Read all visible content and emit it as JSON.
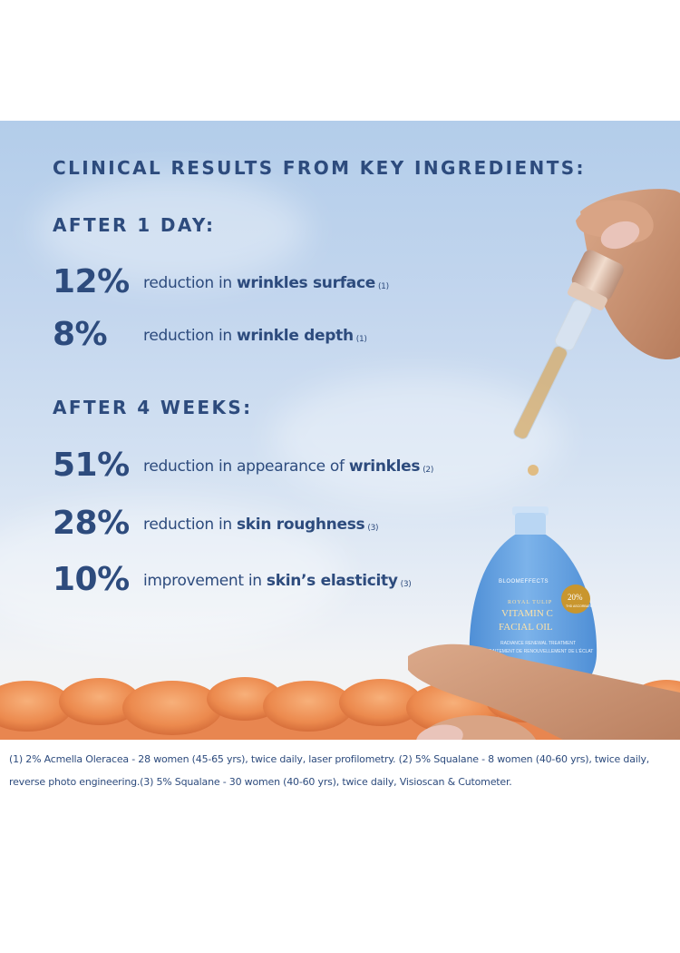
{
  "title": "CLINICAL RESULTS FROM KEY INGREDIENTS:",
  "sections": [
    {
      "heading": "AFTER 1 DAY:",
      "stats": [
        {
          "value": "12%",
          "text": "reduction in ",
          "bold": "wrinkles surface",
          "note": "(1)"
        },
        {
          "value": "8%",
          "text": "reduction in ",
          "bold": "wrinkle depth",
          "note": "(1)"
        }
      ]
    },
    {
      "heading": "AFTER 4 WEEKS:",
      "stats": [
        {
          "value": "51%",
          "text": "reduction in appearance of ",
          "bold": "wrinkles",
          "note": "(2)"
        },
        {
          "value": "28%",
          "text": "reduction in ",
          "bold": "skin roughness",
          "note": "(3)"
        },
        {
          "value": "10%",
          "text": "improvement in ",
          "bold": "skin’s elasticity",
          "note": "(3)"
        }
      ]
    }
  ],
  "product": {
    "brand": "BLOOMEFFECTS",
    "line": "ROYAL TULIP",
    "name_1": "VITAMIN C",
    "name_2": "FACIAL OIL",
    "subtitle_en": "RADIANCE RENEWAL TREATMENT",
    "subtitle_fr": "TRAITEMENT DE RENOUVELLEMENT DE L’ÉCLAT",
    "badge_value": "20%",
    "badge_text": "THD ASCORBATE"
  },
  "footnote": "(1) 2% Acmella Oleracea - 28 women (45-65 yrs), twice daily, laser profilometry. (2) 5% Squalane - 8 women (40-60 yrs), twice daily, reverse photo engineering.(3) 5% Squalane - 30 women (40-60 yrs), twice daily, Visioscan & Cutometer.",
  "colors": {
    "text": "#2d4b7d",
    "bottle": "#6ea8e6",
    "cap": "#d8b8a4",
    "flowers": "#f0955a",
    "badge": "#c9962e"
  }
}
